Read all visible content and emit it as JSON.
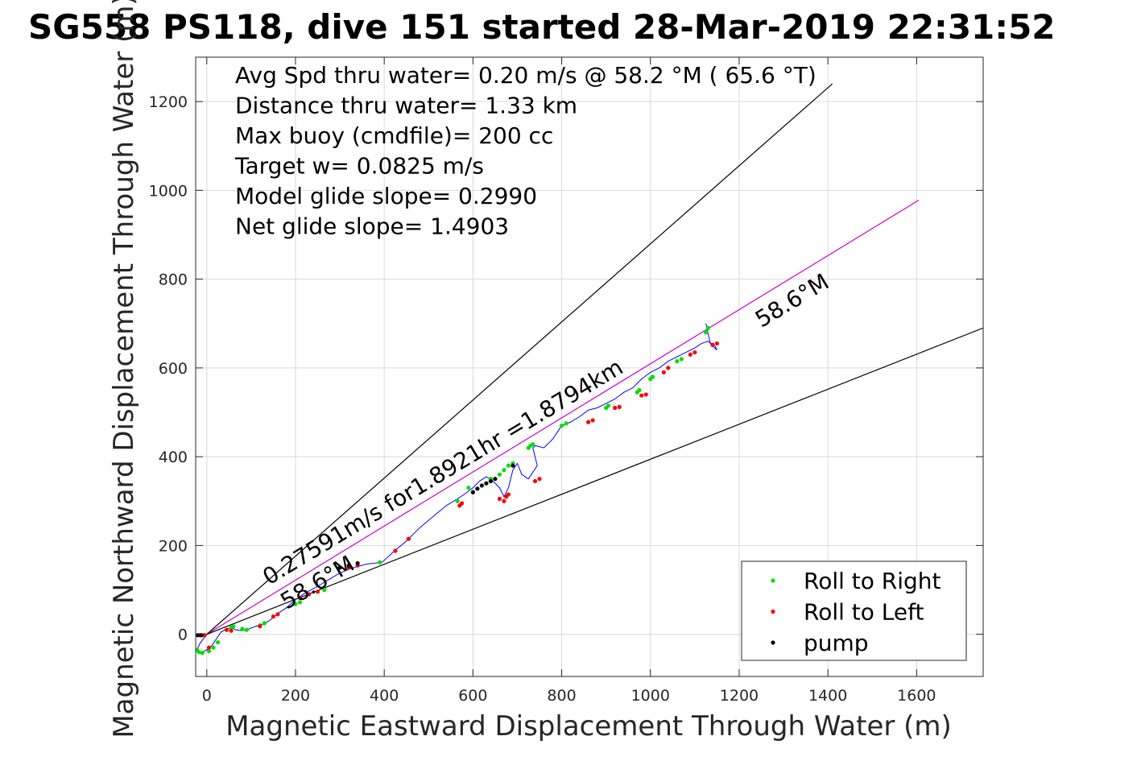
{
  "chart_data": {
    "type": "scatter",
    "title": "SG558 PS118, dive 151 started 28-Mar-2019 22:31:52",
    "xlabel": "Magnetic Eastward Displacement Through Water (m)",
    "ylabel": "Magnetic Northward Displacement Through Water (m)",
    "xlim": [
      -25,
      1750
    ],
    "ylim": [
      -95,
      1300
    ],
    "xticks": [
      0,
      200,
      400,
      600,
      800,
      1000,
      1200,
      1400,
      1600
    ],
    "yticks": [
      0,
      200,
      400,
      600,
      800,
      1000,
      1200
    ],
    "grid": true,
    "legend_placement": "bottom-right",
    "stats_lines": [
      "Avg Spd thru water=  0.20 m/s @  58.2 °M ( 65.6 °T)",
      "Distance thru water=  1.33 km",
      "Max buoy (cmdfile)= 200 cc",
      "Target w= 0.0825 m/s",
      "Model glide slope= 0.2990",
      "Net glide slope= 1.4903"
    ],
    "reference_lines": [
      {
        "name": "upper",
        "color": "#000000",
        "x": [
          0,
          1410
        ],
        "y": [
          0,
          1240
        ]
      },
      {
        "name": "center",
        "color": "#cc00cc",
        "x": [
          0,
          1605
        ],
        "y": [
          0,
          978
        ]
      },
      {
        "name": "lower",
        "color": "#000000",
        "x": [
          0,
          1750
        ],
        "y": [
          0,
          690
        ]
      }
    ],
    "annotations": [
      {
        "text": "0.27591m/s for1.8921hr =1.8794km",
        "x": 140,
        "y": 110,
        "angle": 31
      },
      {
        "text": "58.6°M",
        "x": 180,
        "y": 55,
        "angle": 31
      },
      {
        "text": "58.6°M",
        "x": 1250,
        "y": 690,
        "angle": 31
      }
    ],
    "series": [
      {
        "name": "track",
        "color": "#0000ff",
        "x": [
          0,
          -15,
          -22,
          -12,
          0,
          12,
          22,
          32,
          45,
          55,
          65,
          80,
          95,
          110,
          125,
          140,
          155,
          165,
          180,
          200,
          220,
          245,
          270,
          300,
          330,
          360,
          395,
          420,
          450,
          480,
          510,
          540,
          565,
          580,
          600,
          615,
          630,
          645,
          660,
          670,
          680,
          690,
          700,
          710,
          725,
          745,
          735,
          740,
          760,
          780,
          800,
          820,
          840,
          860,
          880,
          900,
          920,
          940,
          960,
          980,
          1000,
          1020,
          1040,
          1060,
          1080,
          1100,
          1115,
          1130,
          1145,
          1150,
          1135,
          1125
        ],
        "y": [
          0,
          -20,
          -35,
          -42,
          -35,
          -25,
          -10,
          5,
          12,
          15,
          10,
          8,
          12,
          18,
          22,
          30,
          42,
          50,
          60,
          78,
          92,
          105,
          120,
          138,
          150,
          158,
          162,
          185,
          210,
          240,
          265,
          290,
          305,
          315,
          330,
          345,
          355,
          345,
          330,
          310,
          330,
          370,
          385,
          360,
          350,
          380,
          420,
          425,
          420,
          440,
          470,
          478,
          490,
          505,
          510,
          520,
          530,
          545,
          555,
          575,
          590,
          600,
          615,
          625,
          635,
          645,
          655,
          660,
          650,
          640,
          655,
          700
        ]
      },
      {
        "name": "Roll to Right",
        "color": "#00e000",
        "x": [
          -22,
          -18,
          -10,
          5,
          15,
          25,
          55,
          60,
          80,
          90,
          120,
          130,
          200,
          210,
          265,
          390,
          565,
          590,
          640,
          660,
          670,
          680,
          690,
          725,
          730,
          735,
          800,
          810,
          900,
          905,
          970,
          975,
          1000,
          1005,
          1060,
          1070,
          1125,
          1130
        ],
        "y": [
          -35,
          -40,
          -42,
          -38,
          -30,
          -18,
          15,
          18,
          12,
          10,
          20,
          25,
          68,
          72,
          100,
          162,
          300,
          330,
          350,
          360,
          370,
          380,
          385,
          420,
          425,
          428,
          470,
          475,
          510,
          515,
          545,
          550,
          575,
          580,
          615,
          620,
          680,
          690
        ]
      },
      {
        "name": "Roll to Left",
        "color": "#ff0000",
        "x": [
          -15,
          -5,
          5,
          45,
          55,
          120,
          150,
          160,
          210,
          230,
          250,
          320,
          340,
          425,
          455,
          570,
          575,
          660,
          670,
          675,
          680,
          740,
          750,
          860,
          870,
          920,
          930,
          980,
          990,
          1030,
          1040,
          1090,
          1100,
          1140,
          1150
        ],
        "y": [
          -2,
          -2,
          -30,
          10,
          8,
          18,
          40,
          45,
          82,
          90,
          96,
          150,
          155,
          188,
          215,
          290,
          295,
          305,
          300,
          310,
          315,
          345,
          350,
          478,
          482,
          510,
          512,
          538,
          540,
          590,
          600,
          630,
          635,
          652,
          655
        ]
      },
      {
        "name": "pump",
        "color": "#000000",
        "x": [
          -20,
          -12,
          300,
          320,
          340,
          600,
          610,
          620,
          630,
          640,
          650,
          690
        ],
        "y": [
          -2,
          -2,
          150,
          155,
          160,
          320,
          328,
          335,
          340,
          345,
          350,
          380
        ]
      }
    ],
    "legend": [
      "Roll to Right",
      "Roll to Left",
      "pump"
    ]
  }
}
